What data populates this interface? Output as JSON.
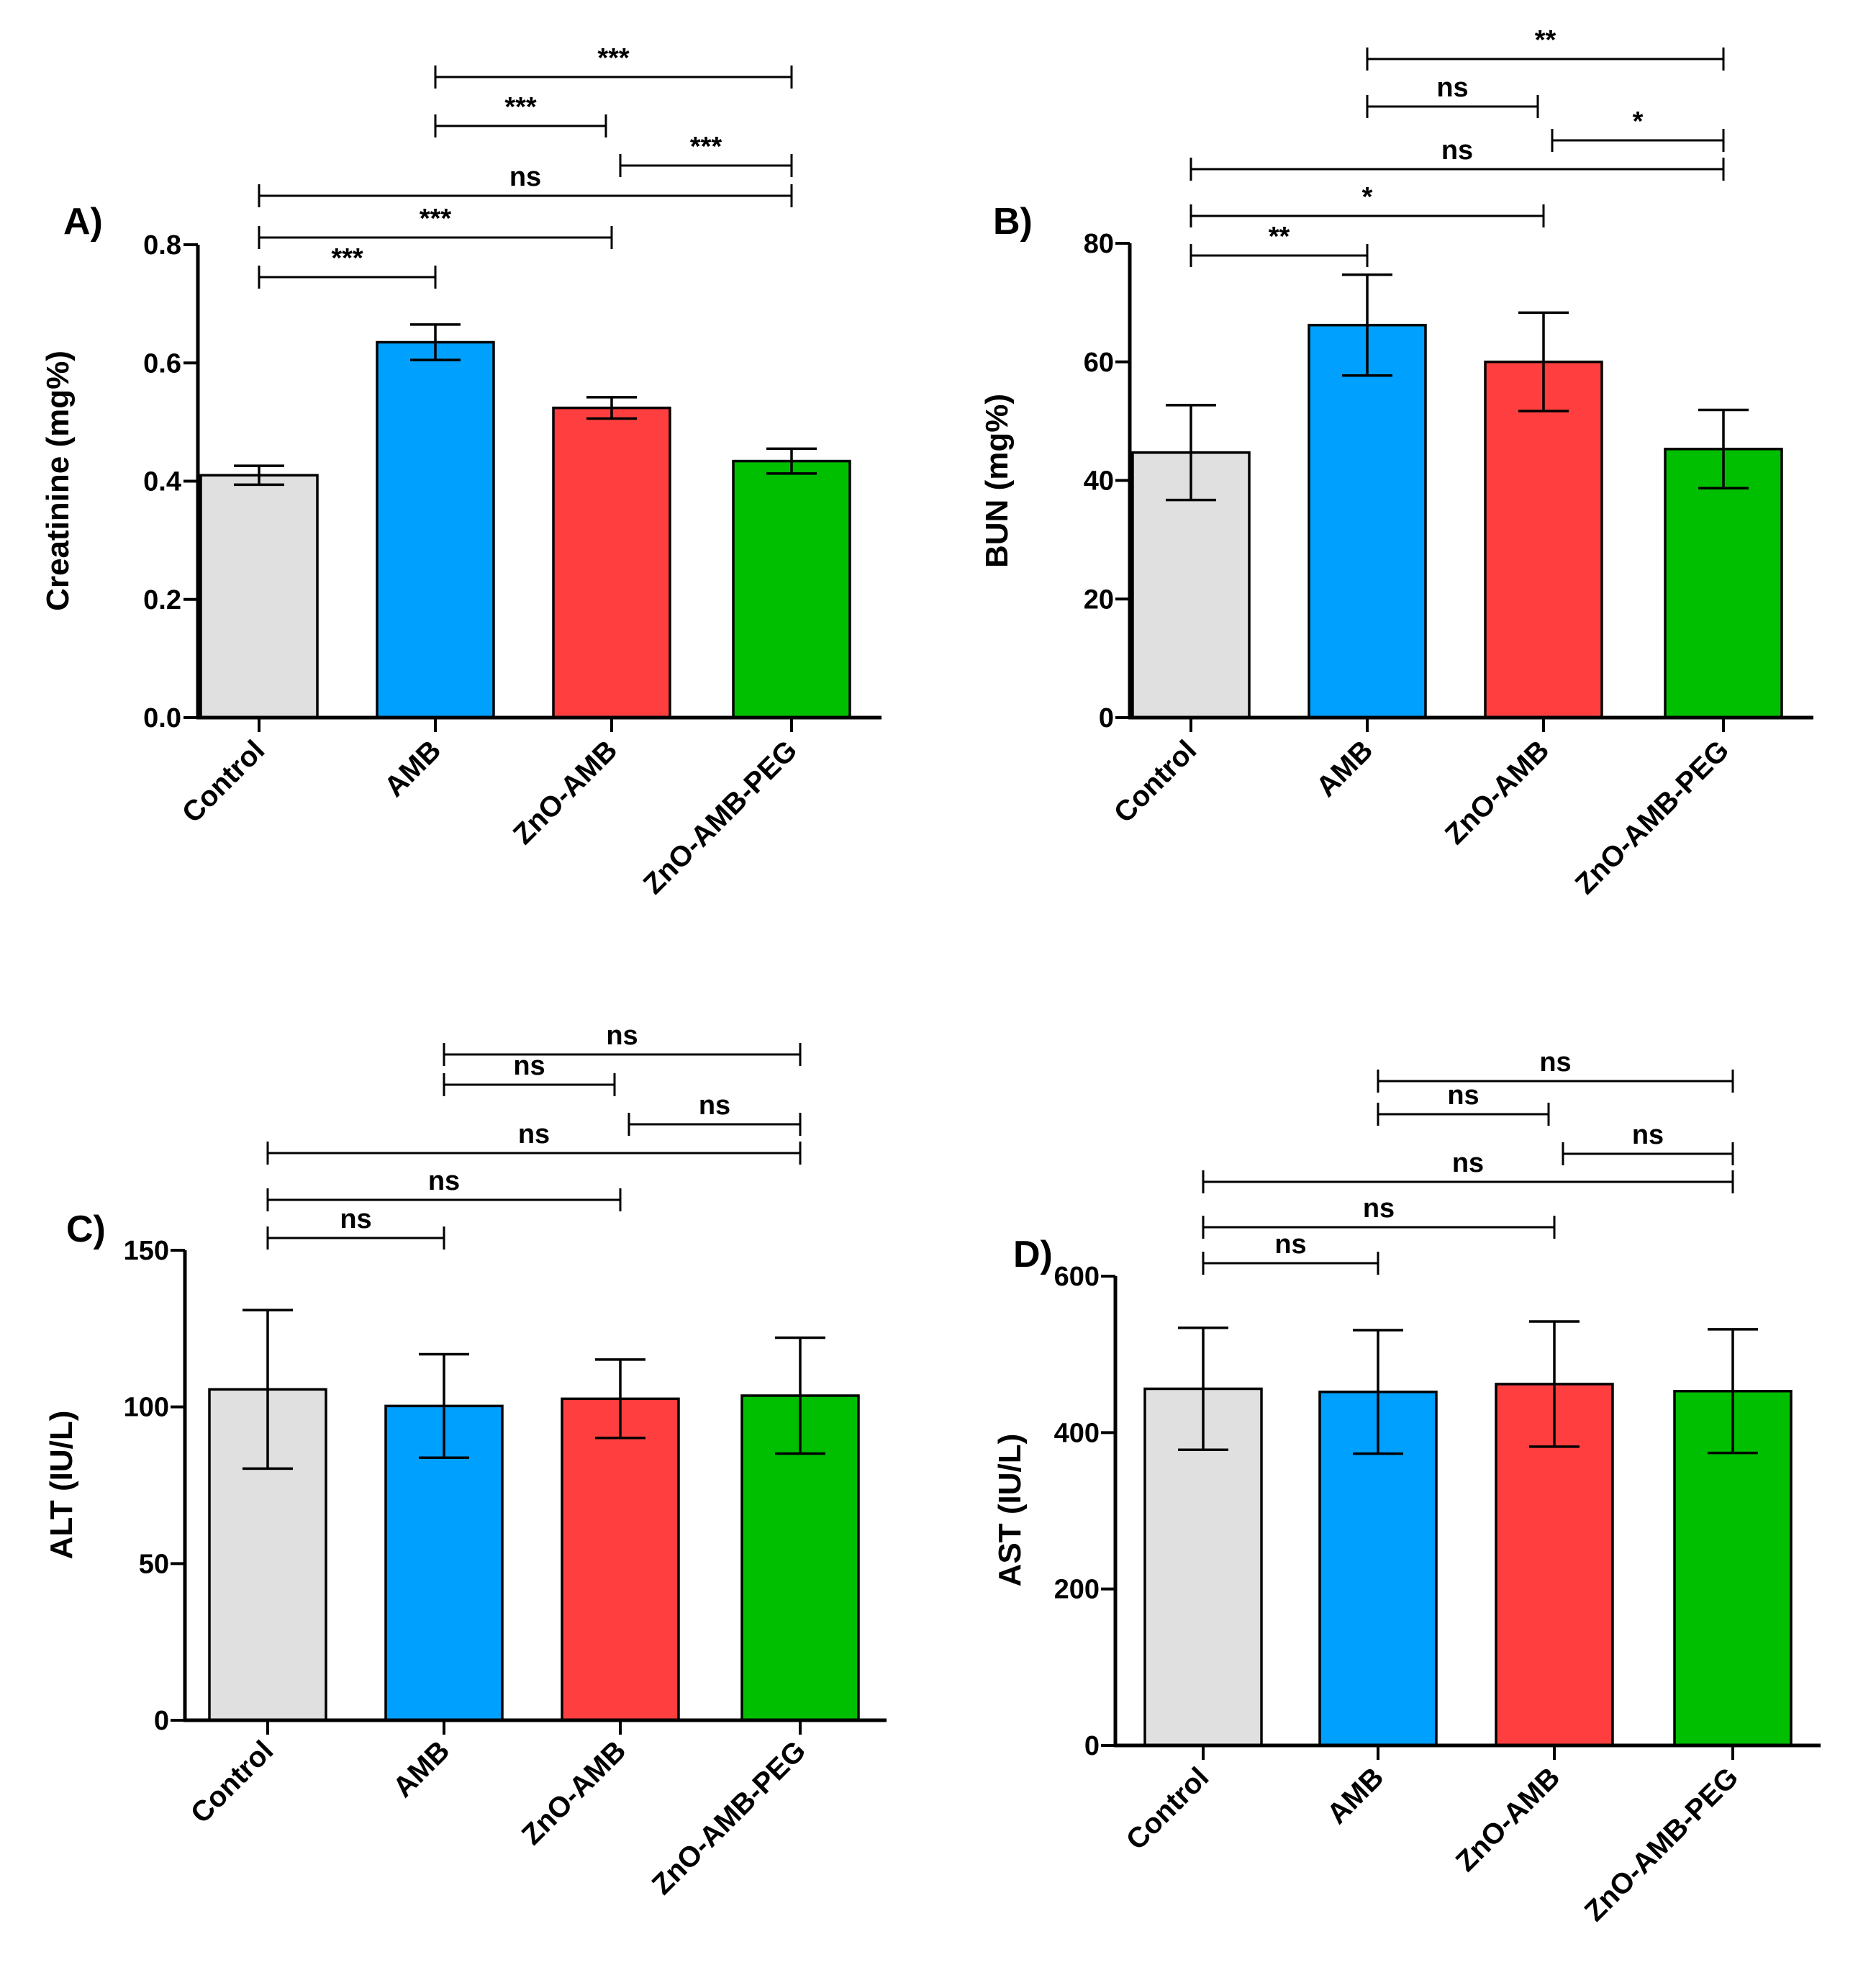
{
  "chart_data": [
    {
      "panel": "A)",
      "type": "bar",
      "ylabel": "Creatinine (mg%)",
      "xlabel": "",
      "categories": [
        "Control",
        "AMB",
        "ZnO-AMB",
        "ZnO-AMB-PEG"
      ],
      "values": [
        0.41,
        0.635,
        0.524,
        0.434
      ],
      "errors": [
        0.016,
        0.03,
        0.018,
        0.021
      ],
      "ylim": [
        0,
        0.8
      ],
      "yticks": [
        0,
        0.2,
        0.4,
        0.6,
        0.8
      ],
      "ytick_labels": [
        "0.0",
        "0.2",
        "0.4",
        "0.6",
        "0.8"
      ],
      "comparisons": [
        {
          "from": 0,
          "to": 1,
          "label": "***"
        },
        {
          "from": 0,
          "to": 2,
          "label": "***"
        },
        {
          "from": 0,
          "to": 3,
          "label": "ns"
        },
        {
          "from": 2,
          "to": 3,
          "label": "***"
        },
        {
          "from": 1,
          "to": 2,
          "label": "***"
        },
        {
          "from": 1,
          "to": 3,
          "label": "***"
        }
      ]
    },
    {
      "panel": "B)",
      "type": "bar",
      "ylabel": "BUN (mg%)",
      "xlabel": "",
      "categories": [
        "Control",
        "AMB",
        "ZnO-AMB",
        "ZnO-AMB-PEG"
      ],
      "values": [
        44.7,
        66.2,
        60.0,
        45.3
      ],
      "errors": [
        8.0,
        8.5,
        8.3,
        6.6
      ],
      "ylim": [
        0,
        80
      ],
      "yticks": [
        0,
        20,
        40,
        60,
        80
      ],
      "ytick_labels": [
        "0",
        "20",
        "40",
        "60",
        "80"
      ],
      "comparisons": [
        {
          "from": 0,
          "to": 1,
          "label": "**"
        },
        {
          "from": 0,
          "to": 2,
          "label": "*"
        },
        {
          "from": 0,
          "to": 3,
          "label": "ns"
        },
        {
          "from": 2,
          "to": 3,
          "label": "*"
        },
        {
          "from": 1,
          "to": 2,
          "label": "ns"
        },
        {
          "from": 1,
          "to": 3,
          "label": "**"
        }
      ]
    },
    {
      "panel": "C)",
      "type": "bar",
      "ylabel": "ALT (IU/L)",
      "xlabel": "",
      "categories": [
        "Control",
        "AMB",
        "ZnO-AMB",
        "ZnO-AMB-PEG"
      ],
      "values": [
        105.6,
        100.3,
        102.6,
        103.6
      ],
      "errors": [
        25.3,
        16.5,
        12.5,
        18.5
      ],
      "ylim": [
        0,
        150
      ],
      "yticks": [
        0,
        50,
        100,
        150
      ],
      "ytick_labels": [
        "0",
        "50",
        "100",
        "150"
      ],
      "comparisons": [
        {
          "from": 0,
          "to": 1,
          "label": "ns"
        },
        {
          "from": 0,
          "to": 2,
          "label": "ns"
        },
        {
          "from": 0,
          "to": 3,
          "label": "ns"
        },
        {
          "from": 2,
          "to": 3,
          "label": "ns"
        },
        {
          "from": 1,
          "to": 2,
          "label": "ns"
        },
        {
          "from": 1,
          "to": 3,
          "label": "ns"
        }
      ]
    },
    {
      "panel": "D)",
      "type": "bar",
      "ylabel": "AST (IU/L)",
      "xlabel": "",
      "categories": [
        "Control",
        "AMB",
        "ZnO-AMB",
        "ZnO-AMB-PEG"
      ],
      "values": [
        456,
        452,
        462,
        453
      ],
      "errors": [
        78,
        79,
        80,
        79
      ],
      "ylim": [
        0,
        600
      ],
      "yticks": [
        0,
        200,
        400,
        600
      ],
      "ytick_labels": [
        "0",
        "200",
        "400",
        "600"
      ],
      "comparisons": [
        {
          "from": 0,
          "to": 1,
          "label": "ns"
        },
        {
          "from": 0,
          "to": 2,
          "label": "ns"
        },
        {
          "from": 0,
          "to": 3,
          "label": "ns"
        },
        {
          "from": 2,
          "to": 3,
          "label": "ns"
        },
        {
          "from": 1,
          "to": 2,
          "label": "ns"
        },
        {
          "from": 1,
          "to": 3,
          "label": "ns"
        }
      ]
    }
  ],
  "colors": {
    "bars": [
      "#e0e0e0",
      "#00a0ff",
      "#ff3f3f",
      "#00bf00"
    ],
    "stroke": "#000000"
  }
}
